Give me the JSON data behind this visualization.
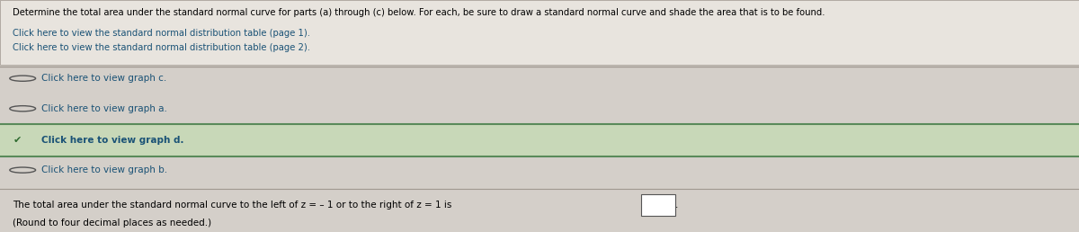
{
  "bg_color": "#d4cfc9",
  "header_text": "Determine the total area under the standard normal curve for parts (a) through (c) below. For each, be sure to draw a standard normal curve and shade the area that is to be found.",
  "link1": "Click here to view the standard normal distribution table (page 1).",
  "link2": "Click here to view the standard normal distribution table (page 2).",
  "radio_items": [
    {
      "label": "Click here to view graph c.",
      "checked": false
    },
    {
      "label": "Click here to view graph a.",
      "checked": false
    },
    {
      "label": "Click here to view graph d.",
      "checked": true
    },
    {
      "label": "Click here to view graph b.",
      "checked": false
    }
  ],
  "footer_line1": "The total area under the standard normal curve to the left of z = – 1 or to the right of z = 1 is",
  "footer_line2": "(Round to four decimal places as needed.)",
  "link_color": "#1a5276",
  "text_color": "#000000",
  "selected_bg": "#c8d8b8",
  "selected_border_top": "#5a8a5a",
  "selected_border_bot": "#5a8a5a",
  "header_bg": "#e8e4de",
  "divider_color": "#a09890"
}
